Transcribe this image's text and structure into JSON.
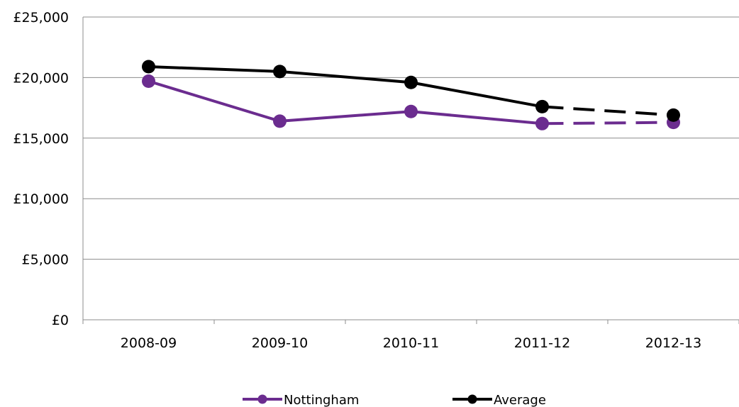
{
  "chart_data": {
    "type": "line",
    "title": "",
    "xlabel": "",
    "ylabel": "",
    "categories": [
      "2008-09",
      "2009-10",
      "2010-11",
      "2011-12",
      "2012-13"
    ],
    "ylim": [
      0,
      25000
    ],
    "yticks": [
      0,
      5000,
      10000,
      15000,
      20000,
      25000
    ],
    "ytick_labels": [
      "£0",
      "£5,000",
      "£10,000",
      "£15,000",
      "£20,000",
      "£25,000"
    ],
    "grid": true,
    "legend_position": "bottom",
    "projected_from_index": 3,
    "series": [
      {
        "name": "Nottingham",
        "color": "#6b2c8f",
        "values": [
          19700,
          16400,
          17200,
          16200,
          16300
        ],
        "segment_styles": [
          "solid",
          "solid",
          "solid",
          "dashed"
        ]
      },
      {
        "name": "Average",
        "color": "#000000",
        "values": [
          20900,
          20500,
          19600,
          17600,
          16900
        ],
        "segment_styles": [
          "solid",
          "solid",
          "solid",
          "dashed"
        ]
      }
    ]
  }
}
